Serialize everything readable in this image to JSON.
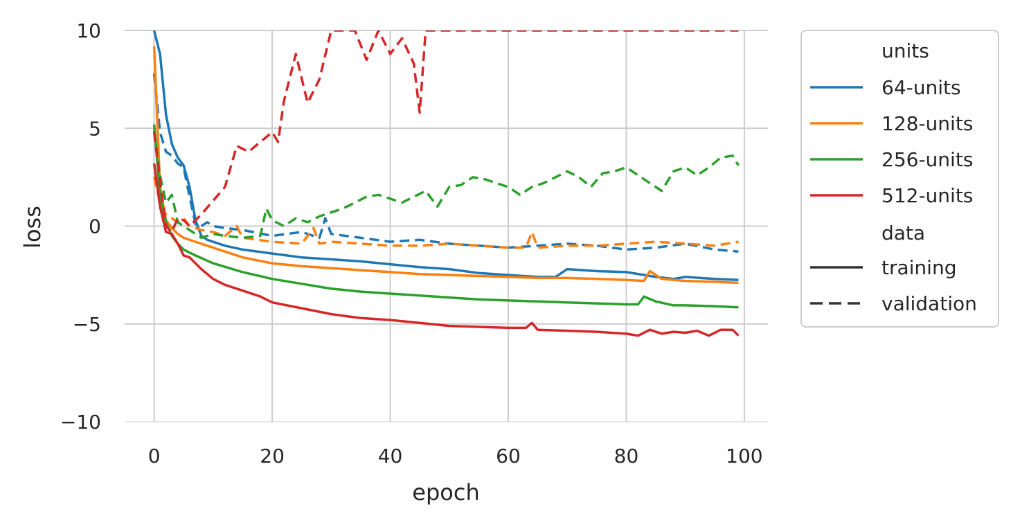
{
  "chart_data": {
    "type": "line",
    "title": "",
    "xlabel": "epoch",
    "ylabel": "loss",
    "xlim": [
      -5,
      104
    ],
    "ylim": [
      -10,
      10
    ],
    "xticks": [
      0,
      20,
      40,
      60,
      80,
      100
    ],
    "yticks": [
      10,
      5,
      0,
      -5,
      -10
    ],
    "ytick_labels": [
      "10",
      "5",
      "0",
      "−5",
      "−10"
    ],
    "grid": true,
    "legend": {
      "placement": "outside-right",
      "hue_title": "units",
      "style_title": "data",
      "hue_labels": [
        "64-units",
        "128-units",
        "256-units",
        "512-units"
      ],
      "style_labels": [
        "training",
        "validation"
      ]
    },
    "colors": {
      "64-units": "#1f77b4",
      "128-units": "#ff7f0e",
      "256-units": "#2ca02c",
      "512-units": "#d62728",
      "style_key": "#333333",
      "grid": "#cccccc",
      "text": "#262626"
    },
    "series": [
      {
        "units": "64-units",
        "data": "training",
        "points": [
          [
            0,
            10
          ],
          [
            1,
            8.8
          ],
          [
            2,
            5.7
          ],
          [
            3,
            4.2
          ],
          [
            4,
            3.5
          ],
          [
            5,
            3.1
          ],
          [
            6,
            2.0
          ],
          [
            7,
            0.3
          ],
          [
            8,
            -0.5
          ],
          [
            9,
            -0.7
          ],
          [
            10,
            -0.8
          ],
          [
            12,
            -1.0
          ],
          [
            15,
            -1.2
          ],
          [
            20,
            -1.4
          ],
          [
            25,
            -1.6
          ],
          [
            30,
            -1.7
          ],
          [
            35,
            -1.8
          ],
          [
            40,
            -1.95
          ],
          [
            45,
            -2.1
          ],
          [
            50,
            -2.2
          ],
          [
            55,
            -2.4
          ],
          [
            60,
            -2.5
          ],
          [
            65,
            -2.6
          ],
          [
            68,
            -2.6
          ],
          [
            70,
            -2.2
          ],
          [
            75,
            -2.3
          ],
          [
            80,
            -2.35
          ],
          [
            85,
            -2.6
          ],
          [
            88,
            -2.7
          ],
          [
            90,
            -2.6
          ],
          [
            95,
            -2.7
          ],
          [
            99,
            -2.75
          ]
        ]
      },
      {
        "units": "64-units",
        "data": "validation",
        "points": [
          [
            0,
            7.8
          ],
          [
            1,
            4.8
          ],
          [
            2,
            3.8
          ],
          [
            3,
            3.6
          ],
          [
            4,
            3.2
          ],
          [
            5,
            3.0
          ],
          [
            6,
            1.5
          ],
          [
            7,
            0.1
          ],
          [
            8,
            0.0
          ],
          [
            9,
            0.2
          ],
          [
            10,
            0.0
          ],
          [
            12,
            -0.1
          ],
          [
            15,
            -0.2
          ],
          [
            20,
            -0.5
          ],
          [
            25,
            -0.3
          ],
          [
            28,
            -0.6
          ],
          [
            29,
            0.4
          ],
          [
            30,
            -0.4
          ],
          [
            35,
            -0.6
          ],
          [
            40,
            -0.8
          ],
          [
            45,
            -0.7
          ],
          [
            50,
            -0.9
          ],
          [
            55,
            -1.0
          ],
          [
            60,
            -1.1
          ],
          [
            65,
            -1.0
          ],
          [
            70,
            -0.9
          ],
          [
            75,
            -1.0
          ],
          [
            80,
            -1.2
          ],
          [
            85,
            -1.1
          ],
          [
            90,
            -0.9
          ],
          [
            95,
            -1.2
          ],
          [
            99,
            -1.3
          ]
        ]
      },
      {
        "units": "128-units",
        "data": "training",
        "points": [
          [
            0,
            9.2
          ],
          [
            1,
            2.0
          ],
          [
            2,
            0.3
          ],
          [
            3,
            -0.1
          ],
          [
            4,
            -0.4
          ],
          [
            5,
            -0.6
          ],
          [
            7,
            -0.8
          ],
          [
            10,
            -1.1
          ],
          [
            15,
            -1.6
          ],
          [
            20,
            -1.9
          ],
          [
            25,
            -2.05
          ],
          [
            30,
            -2.15
          ],
          [
            35,
            -2.25
          ],
          [
            40,
            -2.35
          ],
          [
            45,
            -2.45
          ],
          [
            50,
            -2.5
          ],
          [
            55,
            -2.55
          ],
          [
            60,
            -2.6
          ],
          [
            65,
            -2.65
          ],
          [
            70,
            -2.65
          ],
          [
            75,
            -2.7
          ],
          [
            80,
            -2.75
          ],
          [
            83,
            -2.8
          ],
          [
            84,
            -2.3
          ],
          [
            86,
            -2.7
          ],
          [
            90,
            -2.8
          ],
          [
            95,
            -2.85
          ],
          [
            99,
            -2.9
          ]
        ]
      },
      {
        "units": "128-units",
        "data": "validation",
        "points": [
          [
            0,
            2.5
          ],
          [
            1,
            1.2
          ],
          [
            2,
            0.6
          ],
          [
            3,
            0.4
          ],
          [
            4,
            0.2
          ],
          [
            5,
            0.4
          ],
          [
            6,
            0.0
          ],
          [
            8,
            -0.2
          ],
          [
            10,
            -0.3
          ],
          [
            12,
            -0.5
          ],
          [
            14,
            0.0
          ],
          [
            15,
            -0.6
          ],
          [
            20,
            -0.8
          ],
          [
            25,
            -0.9
          ],
          [
            27,
            -0.1
          ],
          [
            28,
            -0.9
          ],
          [
            30,
            -0.8
          ],
          [
            35,
            -0.9
          ],
          [
            40,
            -1.0
          ],
          [
            45,
            -1.0
          ],
          [
            50,
            -0.9
          ],
          [
            55,
            -1.0
          ],
          [
            60,
            -1.1
          ],
          [
            63,
            -1.1
          ],
          [
            64,
            -0.3
          ],
          [
            65,
            -1.1
          ],
          [
            70,
            -1.0
          ],
          [
            75,
            -1.0
          ],
          [
            80,
            -0.9
          ],
          [
            85,
            -0.8
          ],
          [
            90,
            -0.9
          ],
          [
            95,
            -1.0
          ],
          [
            99,
            -0.8
          ]
        ]
      },
      {
        "units": "256-units",
        "data": "training",
        "points": [
          [
            0,
            5.2
          ],
          [
            1,
            1.6
          ],
          [
            2,
            0.2
          ],
          [
            3,
            -0.5
          ],
          [
            4,
            -0.9
          ],
          [
            5,
            -1.2
          ],
          [
            7,
            -1.5
          ],
          [
            10,
            -1.9
          ],
          [
            15,
            -2.35
          ],
          [
            20,
            -2.7
          ],
          [
            25,
            -2.95
          ],
          [
            30,
            -3.2
          ],
          [
            35,
            -3.35
          ],
          [
            40,
            -3.45
          ],
          [
            45,
            -3.55
          ],
          [
            50,
            -3.65
          ],
          [
            55,
            -3.75
          ],
          [
            60,
            -3.8
          ],
          [
            65,
            -3.85
          ],
          [
            70,
            -3.9
          ],
          [
            75,
            -3.95
          ],
          [
            80,
            -4.0
          ],
          [
            82,
            -4.0
          ],
          [
            83,
            -3.6
          ],
          [
            85,
            -3.85
          ],
          [
            88,
            -4.05
          ],
          [
            90,
            -4.05
          ],
          [
            95,
            -4.1
          ],
          [
            99,
            -4.15
          ]
        ]
      },
      {
        "units": "256-units",
        "data": "validation",
        "points": [
          [
            0,
            4.9
          ],
          [
            1,
            2.6
          ],
          [
            2,
            1.2
          ],
          [
            3,
            1.6
          ],
          [
            4,
            0.2
          ],
          [
            5,
            0.0
          ],
          [
            7,
            -0.4
          ],
          [
            8,
            -0.6
          ],
          [
            10,
            -0.4
          ],
          [
            12,
            -0.5
          ],
          [
            15,
            -0.6
          ],
          [
            18,
            -0.5
          ],
          [
            19,
            0.9
          ],
          [
            20,
            0.3
          ],
          [
            22,
            0.0
          ],
          [
            24,
            0.4
          ],
          [
            26,
            0.2
          ],
          [
            28,
            0.5
          ],
          [
            30,
            0.7
          ],
          [
            32,
            0.9
          ],
          [
            34,
            1.2
          ],
          [
            36,
            1.5
          ],
          [
            38,
            1.6
          ],
          [
            40,
            1.4
          ],
          [
            42,
            1.2
          ],
          [
            44,
            1.5
          ],
          [
            46,
            1.8
          ],
          [
            48,
            1.0
          ],
          [
            50,
            2.0
          ],
          [
            52,
            2.1
          ],
          [
            54,
            2.5
          ],
          [
            56,
            2.4
          ],
          [
            58,
            2.2
          ],
          [
            60,
            2.0
          ],
          [
            62,
            1.6
          ],
          [
            64,
            2.0
          ],
          [
            66,
            2.2
          ],
          [
            68,
            2.5
          ],
          [
            70,
            2.8
          ],
          [
            72,
            2.5
          ],
          [
            74,
            2.0
          ],
          [
            76,
            2.7
          ],
          [
            78,
            2.8
          ],
          [
            80,
            3.0
          ],
          [
            82,
            2.6
          ],
          [
            84,
            2.2
          ],
          [
            86,
            1.8
          ],
          [
            88,
            2.8
          ],
          [
            90,
            3.0
          ],
          [
            92,
            2.6
          ],
          [
            94,
            3.0
          ],
          [
            96,
            3.5
          ],
          [
            98,
            3.6
          ],
          [
            99,
            3.1
          ]
        ]
      },
      {
        "units": "512-units",
        "data": "training",
        "points": [
          [
            0,
            3.2
          ],
          [
            1,
            1.0
          ],
          [
            2,
            -0.3
          ],
          [
            3,
            -0.4
          ],
          [
            4,
            -0.9
          ],
          [
            5,
            -1.5
          ],
          [
            6,
            -1.6
          ],
          [
            8,
            -2.2
          ],
          [
            10,
            -2.7
          ],
          [
            12,
            -3.0
          ],
          [
            15,
            -3.3
          ],
          [
            18,
            -3.6
          ],
          [
            20,
            -3.9
          ],
          [
            25,
            -4.2
          ],
          [
            30,
            -4.5
          ],
          [
            35,
            -4.7
          ],
          [
            40,
            -4.8
          ],
          [
            45,
            -4.95
          ],
          [
            50,
            -5.1
          ],
          [
            55,
            -5.15
          ],
          [
            60,
            -5.2
          ],
          [
            63,
            -5.2
          ],
          [
            64,
            -4.95
          ],
          [
            65,
            -5.3
          ],
          [
            70,
            -5.35
          ],
          [
            75,
            -5.4
          ],
          [
            80,
            -5.5
          ],
          [
            82,
            -5.6
          ],
          [
            84,
            -5.3
          ],
          [
            86,
            -5.5
          ],
          [
            88,
            -5.4
          ],
          [
            90,
            -5.45
          ],
          [
            92,
            -5.35
          ],
          [
            94,
            -5.6
          ],
          [
            96,
            -5.3
          ],
          [
            98,
            -5.3
          ],
          [
            99,
            -5.6
          ]
        ]
      },
      {
        "units": "512-units",
        "data": "validation",
        "points": [
          [
            0,
            4.8
          ],
          [
            1,
            2.3
          ],
          [
            2,
            0.0
          ],
          [
            3,
            -0.3
          ],
          [
            4,
            0.4
          ],
          [
            5,
            0.3
          ],
          [
            6,
            0.0
          ],
          [
            8,
            0.6
          ],
          [
            10,
            1.3
          ],
          [
            12,
            2.0
          ],
          [
            14,
            4.1
          ],
          [
            16,
            3.8
          ],
          [
            18,
            4.3
          ],
          [
            20,
            4.8
          ],
          [
            21,
            4.3
          ],
          [
            22,
            6.4
          ],
          [
            24,
            8.8
          ],
          [
            26,
            6.3
          ],
          [
            28,
            7.5
          ],
          [
            30,
            10
          ],
          [
            34,
            10
          ],
          [
            36,
            8.5
          ],
          [
            38,
            10
          ],
          [
            40,
            8.8
          ],
          [
            42,
            9.6
          ],
          [
            44,
            8.3
          ],
          [
            45,
            5.8
          ],
          [
            46,
            10
          ],
          [
            99,
            10
          ]
        ]
      }
    ]
  }
}
